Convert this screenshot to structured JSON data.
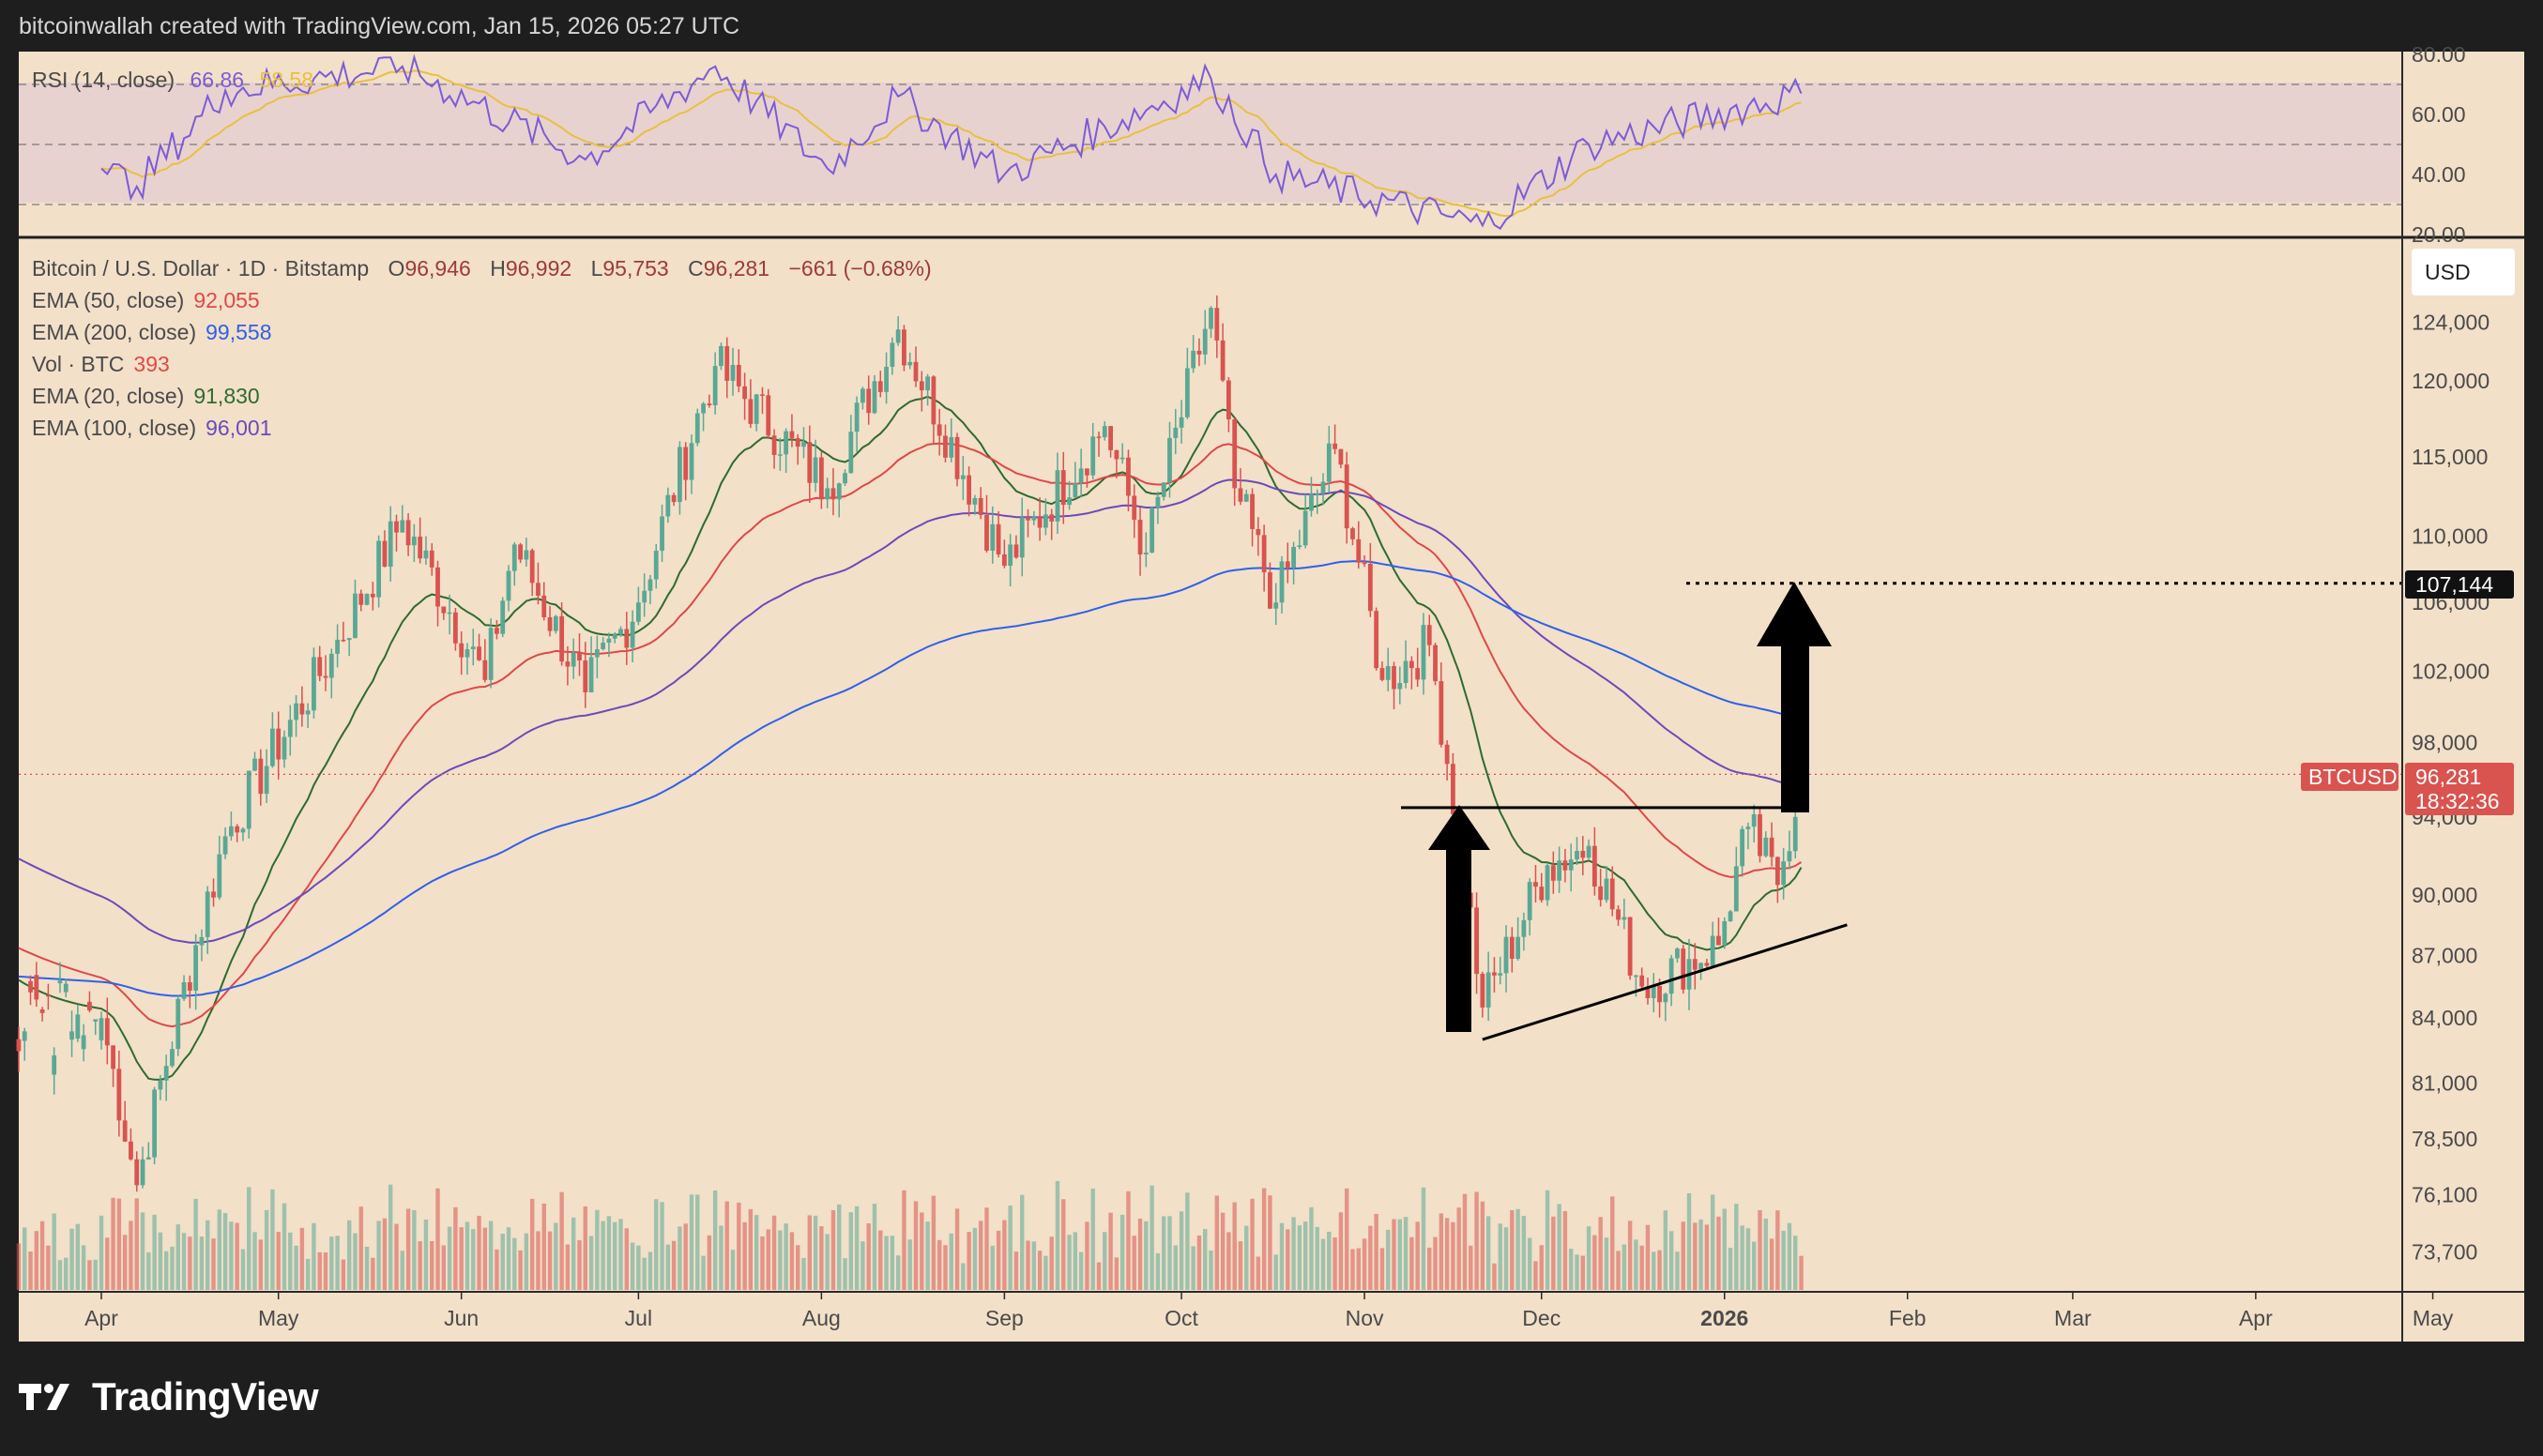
{
  "header": {
    "text": "bitcoinwallah created with TradingView.com, Jan 15, 2026 05:27 UTC"
  },
  "brand": {
    "name": "TradingView"
  },
  "colors": {
    "background": "#f2e0c9",
    "rsi_band": "#e8d2d0",
    "up": "#5aa894",
    "down": "#d9534f",
    "ema20": "#2e6b2e",
    "ema50": "#e04848",
    "ema100": "#6a4bb8",
    "ema200": "#3060e8",
    "rsi": "#7b5cd6",
    "rsi_ma": "#e8c040"
  },
  "rsi_panel": {
    "legend": {
      "name": "RSI (14, close)",
      "value": "66.86",
      "ma_value": "58.58"
    },
    "ticks": [
      "80.00",
      "60.00",
      "40.00",
      "20.00"
    ],
    "levels": [
      70,
      50,
      30
    ]
  },
  "price_panel": {
    "currency_button": "USD",
    "legend": {
      "symbol": "Bitcoin / U.S. Dollar · 1D · Bitstamp",
      "o_label": "O",
      "o": "96,946",
      "h_label": "H",
      "h": "96,992",
      "l_label": "L",
      "l": "95,753",
      "c_label": "C",
      "c": "96,281",
      "change": "−661 (−0.68%)",
      "lines": [
        {
          "name": "EMA (50, close)",
          "value": "92,055",
          "color": "#e04848"
        },
        {
          "name": "EMA (200, close)",
          "value": "99,558",
          "color": "#3060e8"
        },
        {
          "name": "Vol · BTC",
          "value": "393",
          "color": "#e04848"
        },
        {
          "name": "EMA (20, close)",
          "value": "91,830",
          "color": "#2e6b2e"
        },
        {
          "name": "EMA (100, close)",
          "value": "96,001",
          "color": "#6a4bb8"
        }
      ]
    },
    "y_ticks": [
      "124,000",
      "120,000",
      "115,000",
      "110,000",
      "106,000",
      "102,000",
      "98,000",
      "94,000",
      "90,000",
      "87,000",
      "84,000",
      "81,000",
      "78,500",
      "76,100",
      "73,700"
    ],
    "target_label": "107,144",
    "last_price": {
      "symbol": "BTCUSD",
      "price": "96,281",
      "countdown": "18:32:36"
    }
  },
  "x_axis": {
    "labels": [
      "Apr",
      "May",
      "Jun",
      "Jul",
      "Aug",
      "Sep",
      "Oct",
      "Nov",
      "Dec",
      "2026",
      "Feb",
      "Mar",
      "Apr",
      "May"
    ]
  },
  "chart_data": {
    "type": "candlestick",
    "symbol": "BTCUSD",
    "interval": "1D",
    "last": {
      "open": 96946,
      "high": 96992,
      "low": 95753,
      "close": 96281
    },
    "ema": {
      "ema20": 91830,
      "ema50": 92055,
      "ema100": 96001,
      "ema200": 99558
    },
    "anchors": [
      {
        "date": "2025-04-01",
        "close": 84000
      },
      {
        "date": "2025-04-07",
        "close": 76500
      },
      {
        "date": "2025-04-22",
        "close": 93000
      },
      {
        "date": "2025-05-10",
        "close": 103000
      },
      {
        "date": "2025-05-22",
        "close": 111000
      },
      {
        "date": "2025-06-05",
        "close": 101500
      },
      {
        "date": "2025-06-10",
        "close": 109500
      },
      {
        "date": "2025-06-22",
        "close": 100800
      },
      {
        "date": "2025-07-01",
        "close": 106000
      },
      {
        "date": "2025-07-14",
        "close": 121000
      },
      {
        "date": "2025-08-02",
        "close": 113000
      },
      {
        "date": "2025-08-14",
        "close": 123500
      },
      {
        "date": "2025-09-01",
        "close": 108200
      },
      {
        "date": "2025-09-18",
        "close": 117000
      },
      {
        "date": "2025-09-25",
        "close": 109000
      },
      {
        "date": "2025-10-06",
        "close": 125000
      },
      {
        "date": "2025-10-10",
        "close": 113000
      },
      {
        "date": "2025-10-17",
        "close": 106000
      },
      {
        "date": "2025-10-27",
        "close": 115500
      },
      {
        "date": "2025-11-04",
        "close": 101500
      },
      {
        "date": "2025-11-12",
        "close": 103500
      },
      {
        "date": "2025-11-21",
        "close": 84500
      },
      {
        "date": "2025-12-02",
        "close": 91500
      },
      {
        "date": "2025-12-09",
        "close": 92500
      },
      {
        "date": "2025-12-18",
        "close": 85500
      },
      {
        "date": "2025-12-31",
        "close": 87500
      },
      {
        "date": "2026-01-05",
        "close": 93500
      },
      {
        "date": "2026-01-10",
        "close": 90500
      },
      {
        "date": "2026-01-14",
        "close": 96281
      }
    ],
    "rsi_anchors": [
      {
        "date": "2025-04-01",
        "value": 42
      },
      {
        "date": "2025-04-07",
        "value": 36
      },
      {
        "date": "2025-04-22",
        "value": 68
      },
      {
        "date": "2025-05-22",
        "value": 76
      },
      {
        "date": "2025-06-22",
        "value": 45
      },
      {
        "date": "2025-07-14",
        "value": 76
      },
      {
        "date": "2025-08-02",
        "value": 42
      },
      {
        "date": "2025-08-14",
        "value": 66
      },
      {
        "date": "2025-09-01",
        "value": 40
      },
      {
        "date": "2025-10-06",
        "value": 72
      },
      {
        "date": "2025-10-17",
        "value": 40
      },
      {
        "date": "2025-11-21",
        "value": 23
      },
      {
        "date": "2025-12-09",
        "value": 50
      },
      {
        "date": "2026-01-14",
        "value": 67
      }
    ],
    "annotations": {
      "resistance_level": 94500,
      "support_trendline": {
        "from": {
          "date": "2025-11-21",
          "price": 83000
        },
        "to": {
          "date": "2026-01-17",
          "price": 88500
        }
      },
      "target": 107144,
      "pattern": "ascending triangle"
    }
  }
}
